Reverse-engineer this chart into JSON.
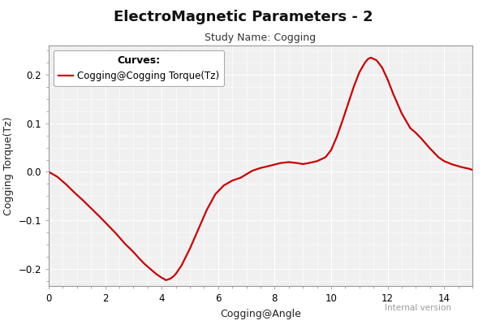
{
  "title": "ElectroMagnetic Parameters - 2",
  "subtitle": "Study Name: Cogging",
  "xlabel": "Cogging@Angle",
  "ylabel": "Cogging Torque(Tz)",
  "legend_title": "Curves:",
  "legend_label": "Cogging@Cogging Torque(Tz)",
  "line_color": "#cc0000",
  "fig_bg_color": "#ffffff",
  "plot_bg_color": "#f0f0f0",
  "grid_color": "#ffffff",
  "xlim": [
    0,
    15
  ],
  "ylim": [
    -0.235,
    0.26
  ],
  "xticks": [
    0,
    2,
    4,
    6,
    8,
    10,
    12,
    14
  ],
  "yticks": [
    -0.2,
    -0.1,
    0.0,
    0.1,
    0.2
  ],
  "title_fontsize": 13,
  "subtitle_fontsize": 9,
  "axis_label_fontsize": 9,
  "tick_fontsize": 8.5,
  "legend_title_fontsize": 9,
  "legend_fontsize": 8.5,
  "x_data": [
    0.0,
    0.3,
    0.6,
    0.9,
    1.2,
    1.5,
    1.8,
    2.1,
    2.4,
    2.7,
    3.0,
    3.2,
    3.4,
    3.6,
    3.8,
    4.0,
    4.1,
    4.15,
    4.2,
    4.3,
    4.4,
    4.5,
    4.7,
    5.0,
    5.3,
    5.6,
    5.9,
    6.2,
    6.5,
    6.8,
    7.0,
    7.2,
    7.5,
    7.8,
    8.0,
    8.2,
    8.5,
    8.8,
    9.0,
    9.2,
    9.5,
    9.8,
    10.0,
    10.2,
    10.4,
    10.6,
    10.8,
    11.0,
    11.1,
    11.2,
    11.3,
    11.4,
    11.6,
    11.8,
    12.0,
    12.2,
    12.5,
    12.8,
    13.0,
    13.2,
    13.5,
    13.8,
    14.0,
    14.3,
    14.6,
    14.9,
    15.0
  ],
  "y_data": [
    0.0,
    -0.01,
    -0.025,
    -0.042,
    -0.058,
    -0.075,
    -0.092,
    -0.11,
    -0.128,
    -0.148,
    -0.165,
    -0.178,
    -0.19,
    -0.2,
    -0.21,
    -0.218,
    -0.221,
    -0.223,
    -0.222,
    -0.22,
    -0.216,
    -0.21,
    -0.193,
    -0.158,
    -0.118,
    -0.078,
    -0.046,
    -0.028,
    -0.018,
    -0.012,
    -0.005,
    0.002,
    0.008,
    0.012,
    0.015,
    0.018,
    0.02,
    0.018,
    0.016,
    0.018,
    0.022,
    0.03,
    0.045,
    0.072,
    0.105,
    0.14,
    0.175,
    0.205,
    0.215,
    0.225,
    0.232,
    0.235,
    0.23,
    0.215,
    0.19,
    0.16,
    0.12,
    0.09,
    0.08,
    0.068,
    0.048,
    0.03,
    0.022,
    0.015,
    0.01,
    0.006,
    0.004
  ]
}
